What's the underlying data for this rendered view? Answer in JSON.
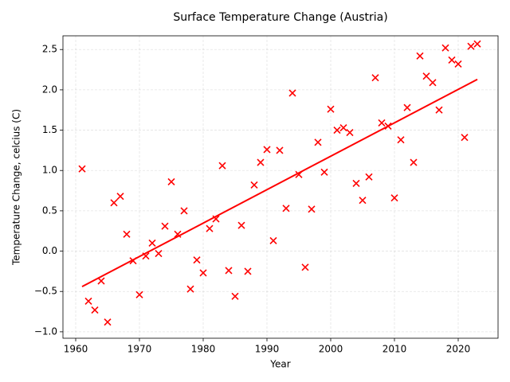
{
  "chart_data": {
    "type": "scatter",
    "title": "Surface Temperature Change (Austria)",
    "x_label": "Year",
    "y_label": "Temperature Change, celcius (C)",
    "x": [
      1961,
      1962,
      1963,
      1964,
      1965,
      1966,
      1967,
      1968,
      1969,
      1970,
      1971,
      1972,
      1973,
      1974,
      1975,
      1976,
      1977,
      1978,
      1979,
      1980,
      1981,
      1982,
      1983,
      1984,
      1985,
      1986,
      1987,
      1988,
      1989,
      1990,
      1991,
      1992,
      1993,
      1994,
      1995,
      1996,
      1997,
      1998,
      1999,
      2000,
      2001,
      2002,
      2003,
      2004,
      2005,
      2006,
      2007,
      2008,
      2009,
      2010,
      2011,
      2012,
      2013,
      2014,
      2015,
      2016,
      2017,
      2018,
      2019,
      2020,
      2021,
      2022,
      2023
    ],
    "series": [
      {
        "type": "scatter",
        "marker": "x",
        "color": "#ff0000",
        "values": [
          1.02,
          -0.62,
          -0.73,
          -0.37,
          -0.88,
          0.6,
          0.68,
          0.21,
          -0.12,
          -0.54,
          -0.06,
          0.1,
          -0.03,
          0.31,
          0.86,
          0.21,
          0.5,
          -0.47,
          -0.11,
          -0.27,
          0.28,
          0.4,
          1.06,
          -0.24,
          -0.56,
          0.32,
          -0.25,
          0.82,
          1.1,
          1.26,
          0.13,
          1.25,
          0.53,
          1.96,
          0.95,
          -0.2,
          0.52,
          1.35,
          0.98,
          1.76,
          1.5,
          1.53,
          1.47,
          0.84,
          0.63,
          0.92,
          2.15,
          1.59,
          1.55,
          0.66,
          1.38,
          1.78,
          1.1,
          2.42,
          2.17,
          2.09,
          1.75,
          2.52,
          2.37,
          2.32,
          1.41,
          2.54,
          2.57
        ]
      },
      {
        "type": "line",
        "color": "#ff0000",
        "x": [
          1961,
          2023
        ],
        "values": [
          -0.44,
          2.13
        ]
      }
    ],
    "xlim": [
      1958,
      2026.25
    ],
    "ylim": [
      -1.08,
      2.67
    ],
    "xticks": [
      1960,
      1970,
      1980,
      1990,
      2000,
      2010,
      2020
    ],
    "yticks": [
      {
        "value": -1.0,
        "label": "−1.0"
      },
      {
        "value": -0.5,
        "label": "−0.5"
      },
      {
        "value": 0,
        "label": "0.0"
      },
      0.5,
      {
        "value": 1.0,
        "label": "1.0"
      },
      1.5,
      {
        "value": 2.0,
        "label": "2.0"
      },
      2.5
    ],
    "grid": true
  }
}
